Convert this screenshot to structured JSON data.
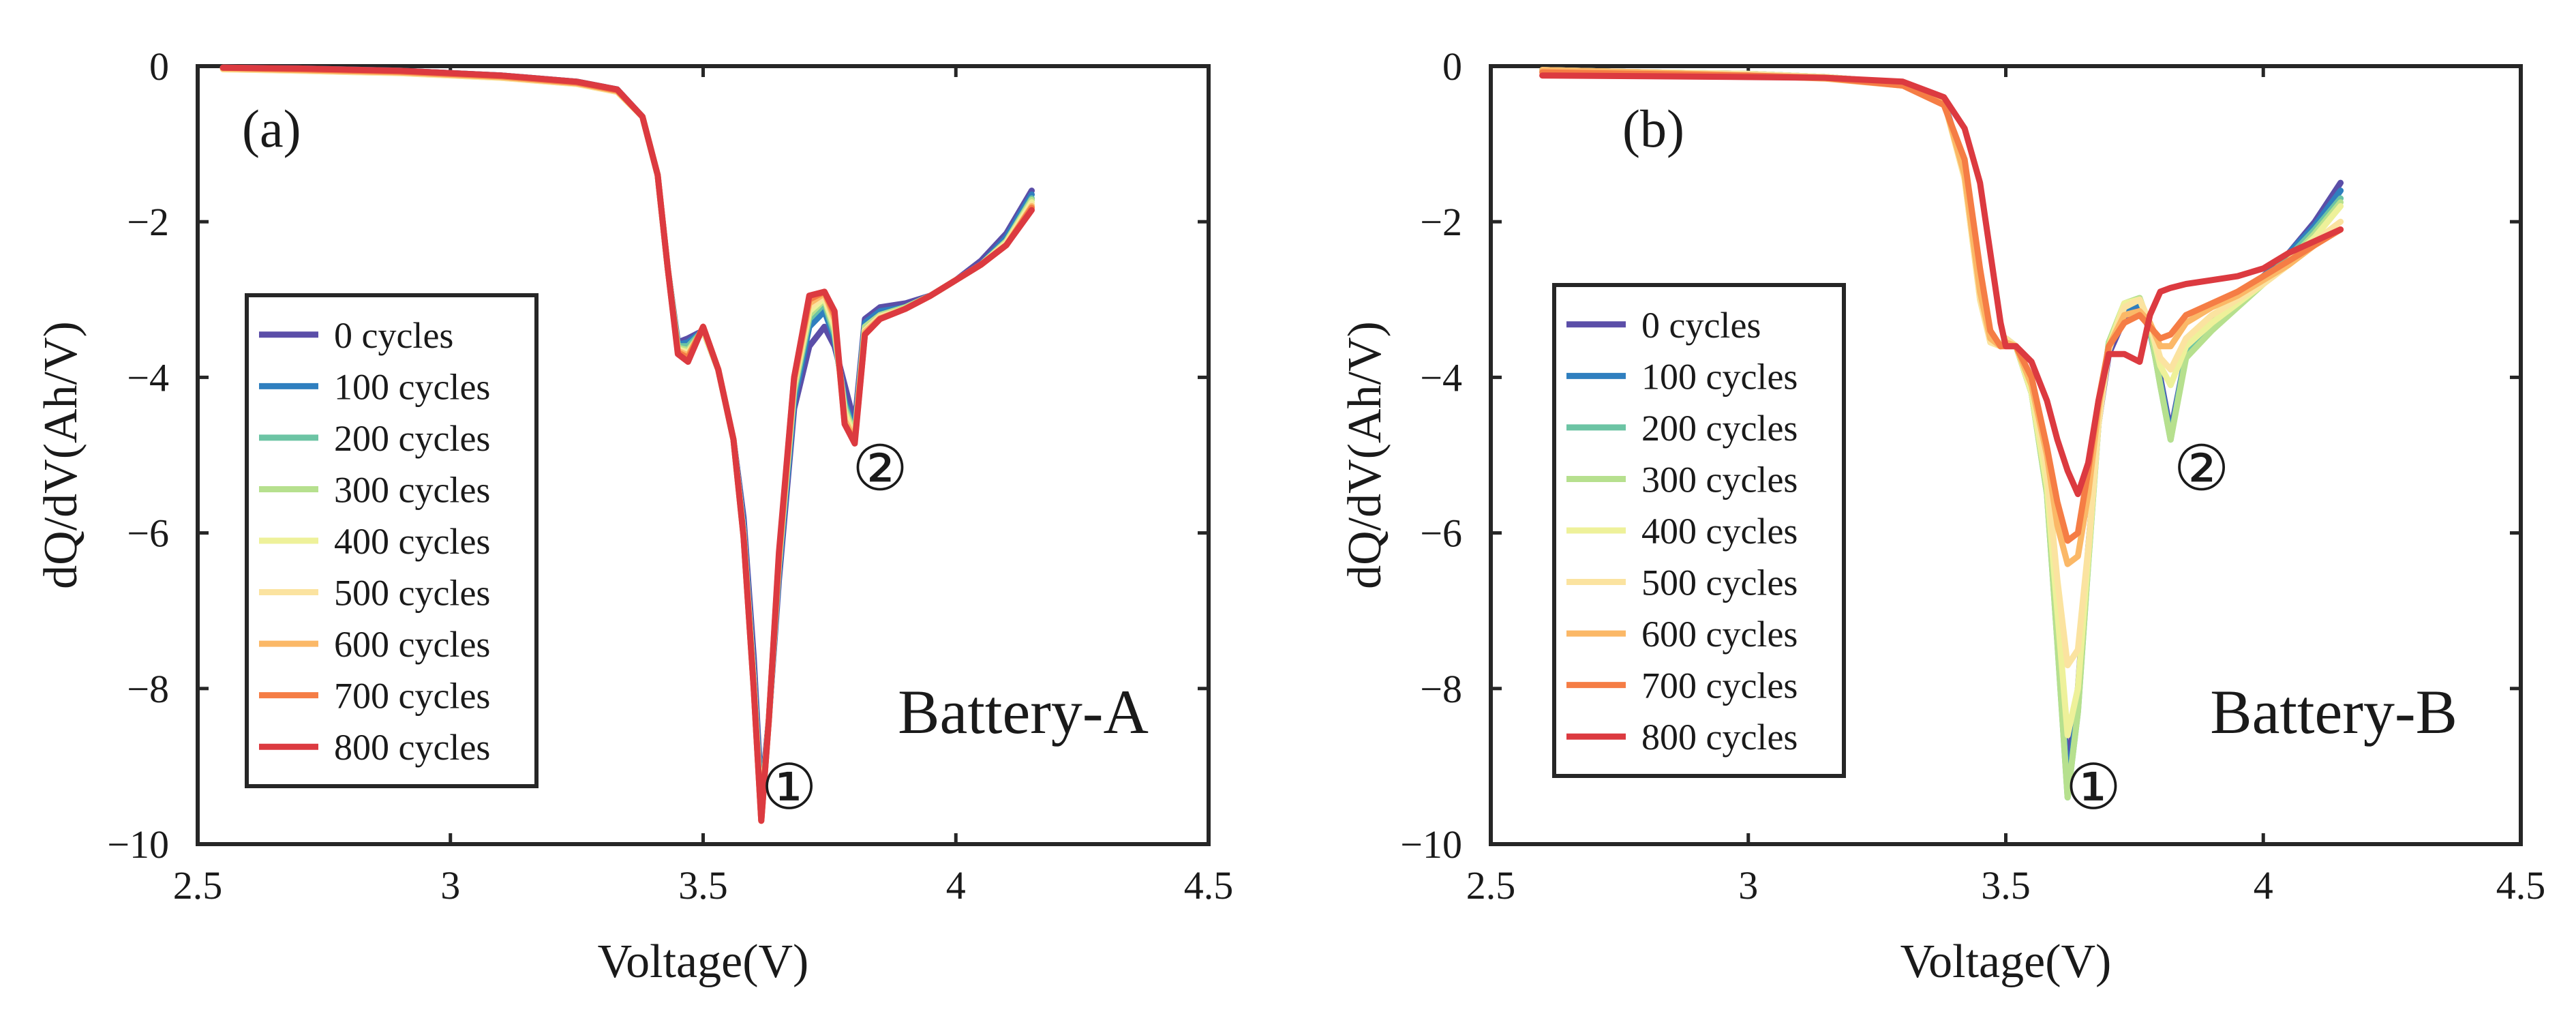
{
  "chart_data": [
    {
      "type": "line",
      "panel_label": "(a)",
      "battery_label": "Battery-A",
      "xlabel": "Voltage(V)",
      "ylabel": "dQ/dV(Ah/V)",
      "xlim": [
        2.5,
        4.5
      ],
      "ylim": [
        -10,
        0
      ],
      "xticks": [
        2.5,
        3,
        3.5,
        4,
        4.5
      ],
      "xtick_labels": [
        "2.5",
        "3",
        "3.5",
        "4",
        "4.5"
      ],
      "yticks": [
        0,
        -2,
        -4,
        -6,
        -8,
        -10
      ],
      "ytick_labels": [
        "0",
        "−2",
        "−4",
        "−6",
        "−8",
        "−10"
      ],
      "legend_position": "left",
      "annotations": [
        {
          "text": "①",
          "x": 3.67,
          "y": -9.3
        },
        {
          "text": "②",
          "x": 3.85,
          "y": -5.2
        }
      ],
      "x": [
        2.55,
        2.7,
        2.9,
        3.1,
        3.25,
        3.33,
        3.38,
        3.41,
        3.43,
        3.45,
        3.47,
        3.5,
        3.53,
        3.56,
        3.58,
        3.6,
        3.615,
        3.63,
        3.65,
        3.68,
        3.71,
        3.74,
        3.76,
        3.78,
        3.8,
        3.82,
        3.85,
        3.9,
        3.95,
        4.0,
        4.05,
        4.1,
        4.15
      ],
      "series": [
        {
          "name": "0 cycles",
          "color": "#5b4ea8",
          "values": [
            -0.02,
            -0.03,
            -0.06,
            -0.12,
            -0.2,
            -0.3,
            -0.65,
            -1.4,
            -2.6,
            -3.55,
            -3.5,
            -3.4,
            -3.9,
            -4.8,
            -5.8,
            -7.6,
            -9.4,
            -8.4,
            -6.6,
            -4.4,
            -3.6,
            -3.35,
            -3.6,
            -4.1,
            -4.6,
            -3.25,
            -3.1,
            -3.05,
            -2.95,
            -2.75,
            -2.5,
            -2.15,
            -1.6
          ]
        },
        {
          "name": "100 cycles",
          "color": "#2f7fbf",
          "values": [
            -0.02,
            -0.03,
            -0.06,
            -0.12,
            -0.2,
            -0.3,
            -0.65,
            -1.4,
            -2.6,
            -3.58,
            -3.55,
            -3.4,
            -3.9,
            -4.8,
            -5.9,
            -7.8,
            -9.5,
            -8.4,
            -6.5,
            -4.3,
            -3.35,
            -3.15,
            -3.5,
            -4.3,
            -4.7,
            -3.3,
            -3.15,
            -3.1,
            -2.95,
            -2.75,
            -2.55,
            -2.2,
            -1.65
          ]
        },
        {
          "name": "200 cycles",
          "color": "#6cc4a4",
          "values": [
            -0.03,
            -0.04,
            -0.07,
            -0.13,
            -0.21,
            -0.31,
            -0.65,
            -1.4,
            -2.6,
            -3.6,
            -3.6,
            -3.4,
            -3.9,
            -4.8,
            -6.0,
            -7.9,
            -9.6,
            -8.4,
            -6.4,
            -4.2,
            -3.25,
            -3.05,
            -3.45,
            -4.35,
            -4.75,
            -3.35,
            -3.2,
            -3.1,
            -2.95,
            -2.75,
            -2.55,
            -2.25,
            -1.7
          ]
        },
        {
          "name": "300 cycles",
          "color": "#b6e08e",
          "values": [
            -0.03,
            -0.05,
            -0.08,
            -0.14,
            -0.22,
            -0.32,
            -0.65,
            -1.4,
            -2.6,
            -3.62,
            -3.65,
            -3.4,
            -3.9,
            -4.8,
            -6.0,
            -7.9,
            -9.6,
            -8.4,
            -6.4,
            -4.15,
            -3.2,
            -3.0,
            -3.4,
            -4.4,
            -4.75,
            -3.35,
            -3.2,
            -3.1,
            -2.95,
            -2.75,
            -2.55,
            -2.25,
            -1.72
          ]
        },
        {
          "name": "400 cycles",
          "color": "#eef19a",
          "values": [
            -0.04,
            -0.06,
            -0.09,
            -0.15,
            -0.23,
            -0.33,
            -0.65,
            -1.4,
            -2.6,
            -3.64,
            -3.68,
            -3.4,
            -3.9,
            -4.8,
            -6.0,
            -7.9,
            -9.65,
            -8.4,
            -6.35,
            -4.1,
            -3.15,
            -2.98,
            -3.35,
            -4.45,
            -4.78,
            -3.4,
            -3.22,
            -3.12,
            -2.95,
            -2.75,
            -2.55,
            -2.27,
            -1.75
          ]
        },
        {
          "name": "500 cycles",
          "color": "#fbe3a0",
          "values": [
            -0.04,
            -0.06,
            -0.09,
            -0.15,
            -0.23,
            -0.33,
            -0.65,
            -1.4,
            -2.6,
            -3.65,
            -3.7,
            -3.38,
            -3.9,
            -4.8,
            -6.0,
            -7.95,
            -9.65,
            -8.4,
            -6.35,
            -4.1,
            -3.1,
            -2.95,
            -3.3,
            -4.5,
            -4.8,
            -3.4,
            -3.22,
            -3.12,
            -2.95,
            -2.75,
            -2.55,
            -2.28,
            -1.78
          ]
        },
        {
          "name": "600 cycles",
          "color": "#fbb867",
          "values": [
            -0.03,
            -0.05,
            -0.08,
            -0.14,
            -0.22,
            -0.32,
            -0.65,
            -1.4,
            -2.6,
            -3.66,
            -3.72,
            -3.36,
            -3.9,
            -4.8,
            -6.05,
            -8.0,
            -9.7,
            -8.4,
            -6.3,
            -4.05,
            -3.05,
            -2.92,
            -3.25,
            -4.55,
            -4.8,
            -3.42,
            -3.24,
            -3.12,
            -2.95,
            -2.75,
            -2.55,
            -2.3,
            -1.8
          ]
        },
        {
          "name": "700 cycles",
          "color": "#f57d45",
          "values": [
            -0.02,
            -0.04,
            -0.07,
            -0.13,
            -0.21,
            -0.31,
            -0.65,
            -1.4,
            -2.6,
            -3.68,
            -3.75,
            -3.35,
            -3.9,
            -4.8,
            -6.05,
            -8.0,
            -9.7,
            -8.4,
            -6.3,
            -4.0,
            -3.0,
            -2.9,
            -3.2,
            -4.6,
            -4.82,
            -3.45,
            -3.25,
            -3.12,
            -2.95,
            -2.75,
            -2.55,
            -2.3,
            -1.82
          ]
        },
        {
          "name": "800 cycles",
          "color": "#dc3a40",
          "values": [
            -0.02,
            -0.03,
            -0.06,
            -0.12,
            -0.2,
            -0.3,
            -0.65,
            -1.4,
            -2.6,
            -3.7,
            -3.8,
            -3.35,
            -3.9,
            -4.8,
            -6.05,
            -8.0,
            -9.7,
            -8.4,
            -6.25,
            -4.0,
            -2.95,
            -2.9,
            -3.15,
            -4.6,
            -4.85,
            -3.45,
            -3.25,
            -3.12,
            -2.95,
            -2.75,
            -2.55,
            -2.3,
            -1.85
          ]
        }
      ]
    },
    {
      "type": "line",
      "panel_label": "(b)",
      "battery_label": "Battery-B",
      "xlabel": "Voltage(V)",
      "ylabel": "dQ/dV(Ah/V)",
      "xlim": [
        2.5,
        4.5
      ],
      "ylim": [
        -10,
        0
      ],
      "xticks": [
        2.5,
        3,
        3.5,
        4,
        4.5
      ],
      "xtick_labels": [
        "2.5",
        "3",
        "3.5",
        "4",
        "4.5"
      ],
      "yticks": [
        0,
        -2,
        -4,
        -6,
        -8,
        -10
      ],
      "ytick_labels": [
        "0",
        "−2",
        "−4",
        "−6",
        "−8",
        "−10"
      ],
      "legend_position": "left",
      "annotations": [
        {
          "text": "①",
          "x": 3.67,
          "y": -9.3
        },
        {
          "text": "②",
          "x": 3.88,
          "y": -5.2
        }
      ],
      "x": [
        2.6,
        2.8,
        3.0,
        3.15,
        3.3,
        3.38,
        3.42,
        3.45,
        3.47,
        3.49,
        3.5,
        3.52,
        3.55,
        3.58,
        3.6,
        3.62,
        3.64,
        3.66,
        3.68,
        3.7,
        3.73,
        3.76,
        3.78,
        3.8,
        3.82,
        3.85,
        3.9,
        3.95,
        4.0,
        4.05,
        4.1,
        4.15
      ],
      "series": [
        {
          "name": "0 cycles",
          "color": "#5b4ea8",
          "values": [
            -0.05,
            -0.08,
            -0.1,
            -0.14,
            -0.22,
            -0.45,
            -1.3,
            -2.7,
            -3.5,
            -3.6,
            -3.5,
            -3.6,
            -4.2,
            -5.3,
            -7.0,
            -9.1,
            -8.0,
            -6.2,
            -4.6,
            -3.7,
            -3.25,
            -3.1,
            -3.4,
            -4.0,
            -4.7,
            -3.7,
            -3.3,
            -3.0,
            -2.7,
            -2.4,
            -2.0,
            -1.5
          ]
        },
        {
          "name": "100 cycles",
          "color": "#2f7fbf",
          "values": [
            -0.05,
            -0.08,
            -0.1,
            -0.14,
            -0.22,
            -0.45,
            -1.35,
            -2.8,
            -3.5,
            -3.6,
            -3.5,
            -3.6,
            -4.2,
            -5.4,
            -7.2,
            -9.3,
            -8.2,
            -6.3,
            -4.6,
            -3.6,
            -3.15,
            -3.05,
            -3.4,
            -4.05,
            -4.75,
            -3.7,
            -3.3,
            -3.0,
            -2.7,
            -2.4,
            -2.05,
            -1.6
          ]
        },
        {
          "name": "200 cycles",
          "color": "#6cc4a4",
          "values": [
            -0.05,
            -0.08,
            -0.1,
            -0.14,
            -0.22,
            -0.45,
            -1.4,
            -2.9,
            -3.5,
            -3.6,
            -3.5,
            -3.6,
            -4.2,
            -5.5,
            -7.4,
            -9.4,
            -8.3,
            -6.4,
            -4.6,
            -3.55,
            -3.1,
            -3.0,
            -3.35,
            -4.1,
            -4.8,
            -3.7,
            -3.35,
            -3.05,
            -2.75,
            -2.45,
            -2.1,
            -1.7
          ]
        },
        {
          "name": "300 cycles",
          "color": "#b6e08e",
          "values": [
            -0.05,
            -0.08,
            -0.1,
            -0.14,
            -0.22,
            -0.45,
            -1.4,
            -2.9,
            -3.5,
            -3.6,
            -3.5,
            -3.6,
            -4.2,
            -5.5,
            -7.4,
            -9.4,
            -8.3,
            -6.4,
            -4.6,
            -3.55,
            -3.05,
            -2.98,
            -3.35,
            -4.1,
            -4.8,
            -3.75,
            -3.4,
            -3.1,
            -2.8,
            -2.5,
            -2.15,
            -1.75
          ]
        },
        {
          "name": "400 cycles",
          "color": "#eef19a",
          "values": [
            -0.05,
            -0.08,
            -0.1,
            -0.14,
            -0.22,
            -0.45,
            -1.45,
            -3.0,
            -3.55,
            -3.6,
            -3.5,
            -3.6,
            -4.2,
            -5.4,
            -7.0,
            -8.6,
            -8.0,
            -6.3,
            -4.6,
            -3.6,
            -3.05,
            -3.0,
            -3.3,
            -3.85,
            -4.1,
            -3.6,
            -3.3,
            -3.05,
            -2.8,
            -2.5,
            -2.2,
            -1.8
          ]
        },
        {
          "name": "500 cycles",
          "color": "#fbe3a0",
          "values": [
            -0.05,
            -0.08,
            -0.1,
            -0.14,
            -0.22,
            -0.45,
            -1.45,
            -3.0,
            -3.55,
            -3.6,
            -3.5,
            -3.6,
            -4.1,
            -5.2,
            -6.6,
            -7.7,
            -7.5,
            -6.2,
            -4.6,
            -3.65,
            -3.1,
            -3.0,
            -3.3,
            -3.75,
            -3.9,
            -3.5,
            -3.2,
            -3.0,
            -2.8,
            -2.55,
            -2.25,
            -2.0
          ]
        },
        {
          "name": "600 cycles",
          "color": "#fbb867",
          "values": [
            -0.05,
            -0.08,
            -0.12,
            -0.16,
            -0.25,
            -0.45,
            -1.4,
            -2.9,
            -3.5,
            -3.6,
            -3.55,
            -3.6,
            -4.1,
            -5.0,
            -5.9,
            -6.4,
            -6.3,
            -5.5,
            -4.4,
            -3.6,
            -3.2,
            -3.15,
            -3.3,
            -3.6,
            -3.6,
            -3.3,
            -3.1,
            -2.95,
            -2.75,
            -2.55,
            -2.3,
            -2.1
          ]
        },
        {
          "name": "700 cycles",
          "color": "#f57d45",
          "values": [
            -0.08,
            -0.1,
            -0.12,
            -0.15,
            -0.25,
            -0.5,
            -1.2,
            -2.6,
            -3.4,
            -3.6,
            -3.6,
            -3.6,
            -4.0,
            -4.9,
            -5.6,
            -6.1,
            -6.0,
            -5.2,
            -4.3,
            -3.6,
            -3.3,
            -3.2,
            -3.35,
            -3.5,
            -3.45,
            -3.2,
            -3.05,
            -2.9,
            -2.7,
            -2.5,
            -2.3,
            -2.1
          ]
        },
        {
          "name": "800 cycles",
          "color": "#dc3a40",
          "values": [
            -0.12,
            -0.13,
            -0.14,
            -0.15,
            -0.2,
            -0.4,
            -0.8,
            -1.5,
            -2.4,
            -3.3,
            -3.6,
            -3.6,
            -3.8,
            -4.3,
            -4.8,
            -5.2,
            -5.5,
            -5.1,
            -4.3,
            -3.7,
            -3.7,
            -3.8,
            -3.2,
            -2.9,
            -2.85,
            -2.8,
            -2.75,
            -2.7,
            -2.6,
            -2.4,
            -2.25,
            -2.1
          ]
        }
      ]
    }
  ]
}
